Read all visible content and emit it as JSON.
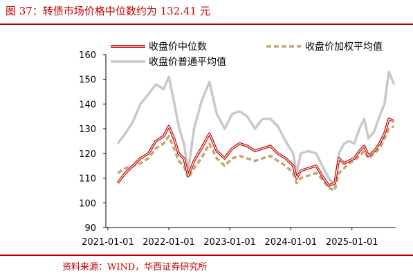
{
  "header": {
    "title": "图 37：转债市场价格中位数约为 132.41 元"
  },
  "footer": {
    "source": "资料来源：WIND，华西证券研究所"
  },
  "colors": {
    "median": "#c00000",
    "median_inner": "#ffffff",
    "weighted": "#c8a36e",
    "simple": "#c8c8c8",
    "accent": "#c00000"
  },
  "chart_data": {
    "type": "line",
    "ylim": [
      90,
      160
    ],
    "yticks": [
      90,
      100,
      110,
      120,
      130,
      140,
      150,
      160
    ],
    "xlim": [
      "2020-12-20",
      "2025-09-20"
    ],
    "xticks": [
      "2021-01-01",
      "2022-01-01",
      "2023-01-01",
      "2024-01-01",
      "2025-01-01"
    ],
    "legend_position": "top",
    "series": [
      {
        "name": "收盘价中位数",
        "style": "double-red",
        "x": [
          "2021-03-01",
          "2021-04-15",
          "2021-06-01",
          "2021-07-15",
          "2021-09-01",
          "2021-10-15",
          "2021-12-01",
          "2022-01-01",
          "2022-02-01",
          "2022-03-01",
          "2022-04-01",
          "2022-04-27",
          "2022-06-01",
          "2022-07-15",
          "2022-09-01",
          "2022-10-15",
          "2022-12-01",
          "2023-01-15",
          "2023-03-01",
          "2023-04-15",
          "2023-06-01",
          "2023-07-15",
          "2023-09-01",
          "2023-10-15",
          "2023-12-01",
          "2024-01-15",
          "2024-02-05",
          "2024-03-01",
          "2024-04-15",
          "2024-06-01",
          "2024-07-15",
          "2024-08-15",
          "2024-09-20",
          "2024-10-15",
          "2024-11-15",
          "2024-12-15",
          "2025-01-15",
          "2025-02-15",
          "2025-03-15",
          "2025-04-10",
          "2025-05-15",
          "2025-06-15",
          "2025-07-15",
          "2025-08-10",
          "2025-09-10"
        ],
        "values": [
          108,
          112,
          115,
          118,
          120,
          125,
          127,
          131,
          126,
          120,
          118,
          111,
          117,
          122,
          128,
          121,
          118,
          122,
          124,
          123,
          121,
          122,
          123,
          120,
          118,
          115,
          110,
          113,
          114,
          115,
          110,
          107,
          108,
          118,
          116,
          117,
          118,
          121,
          123,
          119,
          121,
          124,
          128,
          134,
          133
        ]
      },
      {
        "name": "收盘价加权平均值",
        "style": "dashed",
        "x": [
          "2021-03-01",
          "2021-04-15",
          "2021-06-01",
          "2021-07-15",
          "2021-09-01",
          "2021-10-15",
          "2021-12-01",
          "2022-01-01",
          "2022-02-01",
          "2022-03-01",
          "2022-04-01",
          "2022-04-27",
          "2022-06-01",
          "2022-07-15",
          "2022-09-01",
          "2022-10-15",
          "2022-12-01",
          "2023-01-15",
          "2023-03-01",
          "2023-04-15",
          "2023-06-01",
          "2023-07-15",
          "2023-09-01",
          "2023-10-15",
          "2023-12-01",
          "2024-01-15",
          "2024-02-05",
          "2024-03-01",
          "2024-04-15",
          "2024-06-01",
          "2024-07-15",
          "2024-08-15",
          "2024-09-20",
          "2024-10-15",
          "2024-11-15",
          "2024-12-15",
          "2025-01-15",
          "2025-02-15",
          "2025-03-15",
          "2025-04-10",
          "2025-05-15",
          "2025-06-15",
          "2025-07-15",
          "2025-08-10",
          "2025-09-10"
        ],
        "values": [
          112,
          114,
          115,
          116,
          118,
          122,
          124,
          127,
          122,
          117,
          115,
          110,
          114,
          118,
          124,
          118,
          115,
          118,
          119,
          118,
          117,
          118,
          119,
          117,
          115,
          112,
          108,
          110,
          111,
          112,
          109,
          106,
          105,
          112,
          114,
          116,
          117,
          119,
          121,
          118,
          120,
          122,
          126,
          130,
          131
        ]
      },
      {
        "name": "收盘价普通平均值",
        "style": "solid-gray",
        "x": [
          "2021-03-01",
          "2021-04-15",
          "2021-06-01",
          "2021-07-15",
          "2021-09-01",
          "2021-10-15",
          "2021-12-01",
          "2022-01-01",
          "2022-02-01",
          "2022-03-01",
          "2022-04-01",
          "2022-04-27",
          "2022-06-01",
          "2022-07-15",
          "2022-09-01",
          "2022-10-15",
          "2022-12-01",
          "2023-01-15",
          "2023-03-01",
          "2023-04-15",
          "2023-06-01",
          "2023-07-15",
          "2023-09-01",
          "2023-10-15",
          "2023-12-01",
          "2024-01-15",
          "2024-02-05",
          "2024-03-01",
          "2024-04-15",
          "2024-06-01",
          "2024-07-15",
          "2024-08-15",
          "2024-09-20",
          "2024-10-15",
          "2024-11-15",
          "2024-12-15",
          "2025-01-15",
          "2025-02-15",
          "2025-03-15",
          "2025-04-10",
          "2025-05-15",
          "2025-06-15",
          "2025-07-15",
          "2025-08-10",
          "2025-09-10"
        ],
        "values": [
          124,
          128,
          133,
          140,
          144,
          148,
          146,
          151,
          141,
          131,
          124,
          113,
          130,
          141,
          149,
          136,
          130,
          136,
          137,
          135,
          130,
          134,
          134,
          131,
          125,
          120,
          112,
          120,
          121,
          120,
          114,
          110,
          107,
          120,
          124,
          125,
          124,
          130,
          134,
          126,
          129,
          135,
          140,
          153,
          148
        ]
      }
    ]
  }
}
